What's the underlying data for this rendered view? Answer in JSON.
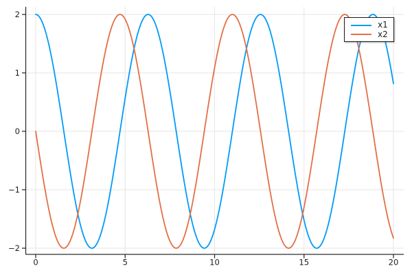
{
  "window": {
    "background": "#ffffff"
  },
  "legend": {
    "position": "top-right",
    "items": [
      {
        "label": "x1",
        "color": "#009af9"
      },
      {
        "label": "x2",
        "color": "#e26f46"
      }
    ]
  },
  "chart_data": {
    "type": "line",
    "title": "",
    "xlabel": "",
    "ylabel": "",
    "grid": true,
    "legend_position": "top-right",
    "x_range": [
      0,
      20
    ],
    "xlim": [
      -0.58,
      20.58
    ],
    "ylim": [
      -2.12,
      2.13
    ],
    "x_ticks": [
      0,
      5,
      10,
      15,
      20
    ],
    "x_tick_labels": [
      "0",
      "5",
      "10",
      "15",
      "20"
    ],
    "y_ticks": [
      -2,
      -1,
      0,
      1,
      2
    ],
    "y_tick_labels": [
      "−2",
      "−1",
      "0",
      "1",
      "2"
    ],
    "colors": {
      "grid": "#e5e5e5",
      "spine": "#2f2f2f",
      "tick_text": "#1c1c1c",
      "background": "#ffffff"
    },
    "series": [
      {
        "name": "x1",
        "color": "#009af9",
        "formula": "y = 2*cos(x)",
        "amplitude": 2,
        "trig": "cos",
        "phase": 0,
        "line_width": 1.8,
        "samples_x": [
          0,
          1,
          2,
          3,
          4,
          5,
          6,
          7,
          8,
          9,
          10,
          11,
          12,
          13,
          14,
          15,
          16,
          17,
          18,
          19,
          20
        ],
        "samples_y": [
          2.0,
          1.081,
          -0.832,
          -1.98,
          -1.307,
          0.567,
          1.92,
          1.508,
          -0.291,
          -1.822,
          -1.678,
          0.009,
          1.688,
          1.815,
          0.273,
          -1.519,
          -1.915,
          -0.55,
          1.321,
          1.977,
          0.816
        ]
      },
      {
        "name": "x2",
        "color": "#e26f46",
        "formula": "y = -2*sin(x)",
        "amplitude": -2,
        "trig": "sin",
        "phase": 0,
        "line_width": 1.8,
        "samples_x": [
          0,
          1,
          2,
          3,
          4,
          5,
          6,
          7,
          8,
          9,
          10,
          11,
          12,
          13,
          14,
          15,
          16,
          17,
          18,
          19,
          20
        ],
        "samples_y": [
          0.0,
          -1.683,
          -1.819,
          -0.282,
          1.514,
          1.918,
          0.559,
          -1.314,
          -1.979,
          -0.824,
          1.088,
          2.0,
          1.073,
          -0.84,
          -1.981,
          -1.301,
          0.576,
          1.923,
          1.502,
          -0.3,
          -1.826
        ]
      }
    ]
  }
}
